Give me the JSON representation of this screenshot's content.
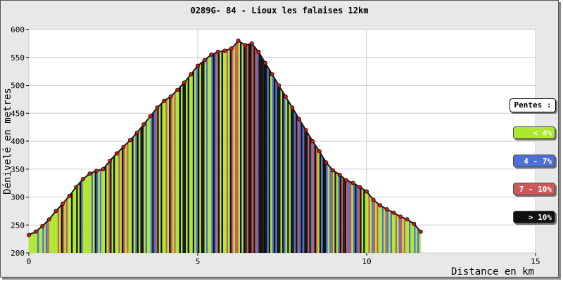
{
  "chart_data": {
    "type": "area",
    "title": "0289G- 84 - Lioux les falaises 12km",
    "xlabel": "Distance en km",
    "ylabel": "Dénivelé en metres",
    "xlim": [
      0,
      15
    ],
    "ylim": [
      200,
      600
    ],
    "xticks": [
      "0",
      "5",
      "10",
      "15"
    ],
    "yticks": [
      "200",
      "250",
      "300",
      "350",
      "400",
      "450",
      "500",
      "550",
      "600"
    ],
    "grid": true,
    "legend_position": "right",
    "x": [
      0.0,
      0.2,
      0.4,
      0.6,
      0.8,
      1.0,
      1.2,
      1.4,
      1.6,
      1.8,
      2.0,
      2.2,
      2.4,
      2.6,
      2.8,
      3.0,
      3.2,
      3.4,
      3.6,
      3.8,
      4.0,
      4.2,
      4.4,
      4.6,
      4.8,
      5.0,
      5.2,
      5.4,
      5.6,
      5.8,
      6.0,
      6.2,
      6.4,
      6.6,
      6.8,
      7.0,
      7.2,
      7.4,
      7.6,
      7.8,
      8.0,
      8.2,
      8.4,
      8.6,
      8.8,
      9.0,
      9.2,
      9.4,
      9.6,
      9.8,
      10.0,
      10.2,
      10.4,
      10.6,
      10.8,
      11.0,
      11.2,
      11.4,
      11.6
    ],
    "y": [
      232,
      238,
      248,
      260,
      275,
      288,
      302,
      318,
      332,
      342,
      347,
      350,
      365,
      378,
      390,
      402,
      415,
      430,
      445,
      460,
      472,
      480,
      492,
      505,
      520,
      535,
      545,
      555,
      560,
      562,
      566,
      580,
      572,
      575,
      560,
      540,
      520,
      500,
      480,
      460,
      440,
      420,
      400,
      382,
      362,
      348,
      340,
      330,
      325,
      318,
      310,
      295,
      285,
      278,
      272,
      265,
      260,
      252,
      238
    ],
    "slope_colors": [
      "#ade82f",
      "#ade82f",
      "#4f6fd8",
      "#ade82f",
      "#ade82f",
      "#cc5a5a",
      "#ade82f",
      "#111111",
      "#ade82f",
      "#ade82f",
      "#4f6fd8",
      "#ade82f",
      "#111111",
      "#ade82f",
      "#cc5a5a",
      "#ade82f",
      "#111111",
      "#ade82f",
      "#4f6fd8",
      "#111111",
      "#ade82f",
      "#cc5a5a",
      "#ade82f",
      "#111111",
      "#ade82f",
      "#111111",
      "#ade82f",
      "#4f6fd8",
      "#111111",
      "#ade82f",
      "#cc5a5a",
      "#ade82f",
      "#111111",
      "#cc5a5a",
      "#111111",
      "#111111",
      "#4f6fd8",
      "#111111",
      "#ade82f",
      "#111111",
      "#4f6fd8",
      "#111111",
      "#cc5a5a",
      "#111111",
      "#4f6fd8",
      "#ade82f",
      "#111111",
      "#cc5a5a",
      "#4f6fd8",
      "#111111",
      "#ade82f",
      "#cc5a5a",
      "#ade82f",
      "#4f6fd8",
      "#ade82f",
      "#cc5a5a",
      "#ade82f",
      "#4f6fd8",
      "#ade82f"
    ]
  },
  "legend": {
    "title": "Pentes :",
    "items": [
      {
        "label": "< 4%",
        "color": "#ade82f",
        "text_color": "#ffffff"
      },
      {
        "label": "4 - 7%",
        "color": "#4f6fd8",
        "text_color": "#ffffff"
      },
      {
        "label": "7 - 10%",
        "color": "#cc5a5a",
        "text_color": "#ffffff"
      },
      {
        "label": "> 10%",
        "color": "#111111",
        "text_color": "#ffffff"
      }
    ]
  }
}
